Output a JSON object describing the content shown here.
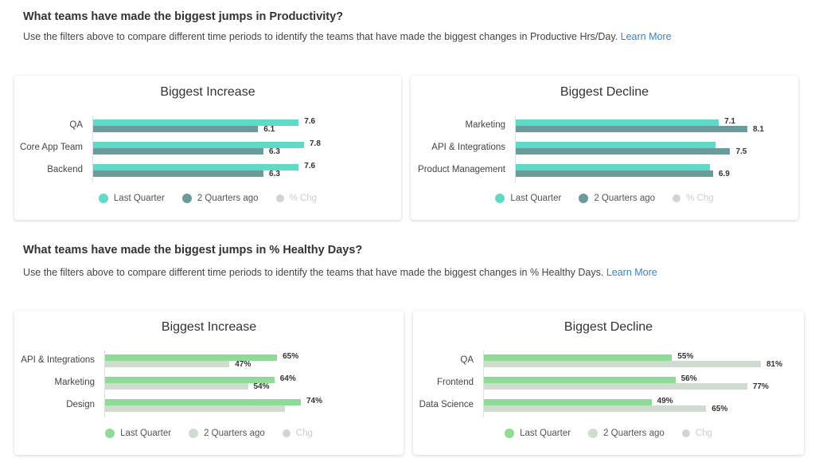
{
  "section1": {
    "heading": "What teams have made the biggest jumps in Productivity?",
    "desc": "Use the filters above to compare different time periods to identify the teams that have made the biggest changes in Productive Hrs/Day.",
    "link": "Learn More"
  },
  "section2": {
    "heading": "What teams have made the biggest jumps in % Healthy Days?",
    "desc": "Use the filters above to compare different time periods to identify the teams that have made the biggest changes in % Healthy Days.",
    "link": "Learn More"
  },
  "chart_data": [
    {
      "type": "bar",
      "orientation": "horizontal",
      "title": "Biggest Increase",
      "categories": [
        "QA",
        "Core App Team",
        "Backend"
      ],
      "series": [
        {
          "name": "Last Quarter",
          "values": [
            7.6,
            7.8,
            7.6
          ],
          "labels": [
            "7.6",
            "7.8",
            "7.6"
          ],
          "color": "#5fdac7"
        },
        {
          "name": "2 Quarters ago",
          "values": [
            6.1,
            6.3,
            6.3
          ],
          "labels": [
            "6.1",
            "6.3",
            "6.3"
          ],
          "color": "#6a9c9c"
        }
      ],
      "legend": [
        {
          "name": "Last Quarter",
          "color": "#5fdac7"
        },
        {
          "name": "2 Quarters ago",
          "color": "#6a9c9c"
        },
        {
          "name": "% Chg",
          "color": "#d3d3d3",
          "muted": true
        }
      ],
      "legend_position": "bottom"
    },
    {
      "type": "bar",
      "orientation": "horizontal",
      "title": "Biggest Decline",
      "categories": [
        "Marketing",
        "API & Integrations",
        "Product Management"
      ],
      "series": [
        {
          "name": "Last Quarter",
          "values": [
            7.1,
            7.0,
            6.8
          ],
          "labels": [
            "7.1",
            "",
            ""
          ],
          "color": "#5fdac7"
        },
        {
          "name": "2 Quarters ago",
          "values": [
            8.1,
            7.5,
            6.9
          ],
          "labels": [
            "8.1",
            "7.5",
            "6.9"
          ],
          "color": "#6a9c9c"
        }
      ],
      "legend": [
        {
          "name": "Last Quarter",
          "color": "#5fdac7"
        },
        {
          "name": "2 Quarters ago",
          "color": "#6a9c9c"
        },
        {
          "name": "% Chg",
          "color": "#d3d3d3",
          "muted": true
        }
      ],
      "legend_position": "bottom"
    },
    {
      "type": "bar",
      "orientation": "horizontal",
      "title": "Biggest Increase",
      "categories": [
        "API & Integrations",
        "Marketing",
        "Design"
      ],
      "series": [
        {
          "name": "Last Quarter",
          "values": [
            65,
            64,
            74
          ],
          "labels": [
            "65%",
            "64%",
            "74%"
          ],
          "color": "#8edc98"
        },
        {
          "name": "2 Quarters ago",
          "values": [
            47,
            54,
            68
          ],
          "labels": [
            "47%",
            "54%",
            ""
          ],
          "color": "#cfdccf"
        }
      ],
      "legend": [
        {
          "name": "Last Quarter",
          "color": "#8edc98"
        },
        {
          "name": "2 Quarters ago",
          "color": "#cfdccf"
        },
        {
          "name": "Chg",
          "color": "#d3d3d3",
          "muted": true
        }
      ],
      "legend_position": "bottom"
    },
    {
      "type": "bar",
      "orientation": "horizontal",
      "title": "Biggest Decline",
      "categories": [
        "QA",
        "Frontend",
        "Data Science"
      ],
      "series": [
        {
          "name": "Last Quarter",
          "values": [
            55,
            56,
            49
          ],
          "labels": [
            "55%",
            "56%",
            "49%"
          ],
          "color": "#8edc98"
        },
        {
          "name": "2 Quarters ago",
          "values": [
            81,
            77,
            65
          ],
          "labels": [
            "81%",
            "77%",
            "65%"
          ],
          "color": "#cfdccf"
        }
      ],
      "legend": [
        {
          "name": "Last Quarter",
          "color": "#8edc98"
        },
        {
          "name": "2 Quarters ago",
          "color": "#cfdccf"
        },
        {
          "name": "Chg",
          "color": "#d3d3d3",
          "muted": true
        }
      ],
      "legend_position": "bottom"
    }
  ]
}
